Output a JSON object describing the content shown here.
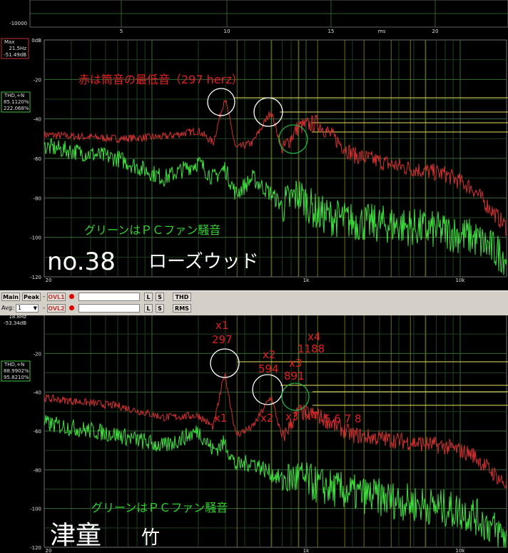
{
  "time_panel": {
    "y_tick": "-10000",
    "x_ticks": [
      "5",
      "10",
      "15",
      "20"
    ],
    "unit": "ms"
  },
  "panel1": {
    "readout": {
      "line1": "Max",
      "line2": "21.5Hz",
      "line3": "-51.49dB"
    },
    "thd": {
      "line1": "THD,+N",
      "line2": "85.1120%",
      "line3": "222.068%"
    },
    "y_ticks": [
      "0dB",
      "-20",
      "-40",
      "-60",
      "-80",
      "-100",
      "-120"
    ],
    "x_ticks": [
      "20",
      "1k",
      "10k"
    ],
    "note_red": "赤は筒音の最低音（297 herz）",
    "note_green": "グリーンはＰＣファン騒音",
    "title_no": "no.38",
    "title_name": "ローズウッド"
  },
  "toolbar": {
    "main": "Main",
    "peak": "Peak",
    "dash1": "-",
    "ovl1": "OVL1",
    "dash2": "-",
    "ovl2": "OVL2",
    "avg_label": "Avg:",
    "avg_value": "1",
    "l": "L",
    "s": "S",
    "thd": "THD",
    "rms": "RMS"
  },
  "panel2": {
    "readout": {
      "line1": "18.8Hz",
      "line2": "-53.34dB"
    },
    "thd": {
      "line1": "THD,+N",
      "line2": "88.9902%",
      "line3": "95.8210%"
    },
    "y_ticks": [
      "-20",
      "-40",
      "-60",
      "-80",
      "-100",
      "-120"
    ],
    "x_ticks": [
      "20",
      "1k",
      "10k"
    ],
    "harmonic_labels": {
      "x1_top": "x1",
      "v1": "297",
      "x2_top": "x2",
      "v2": "594",
      "x3_top": "x3",
      "v3": "891",
      "x4_top": "x4",
      "v4": "1188",
      "x1_low": "x1",
      "x2_low": "x2",
      "x3_low": "x3",
      "x4_low": "x4",
      "rest": "5 6 7 8"
    },
    "note_green": "グリーンはＰＣファン騒音",
    "title_name": "津童",
    "title_material": "竹"
  },
  "chart_data": [
    {
      "type": "line",
      "title": "",
      "xlabel": "",
      "ylabel": "",
      "xscale": "log",
      "xlim": [
        20,
        20000
      ],
      "ylim": [
        -120,
        0
      ],
      "grid": true,
      "series": [
        {
          "color": "#d03030",
          "x": [
            20,
            60,
            120,
            200,
            250,
            297,
            350,
            450,
            594,
            700,
            891,
            1188,
            2000,
            4000,
            8000,
            12000,
            20000
          ],
          "y": [
            -48,
            -50,
            -49,
            -46,
            -52,
            -29,
            -55,
            -52,
            -36,
            -56,
            -44,
            -42,
            -58,
            -64,
            -68,
            -75,
            -95
          ]
        },
        {
          "color": "#40d040",
          "x": [
            20,
            60,
            120,
            200,
            250,
            297,
            350,
            450,
            594,
            700,
            891,
            1188,
            2000,
            4000,
            8000,
            12000,
            20000
          ],
          "y": [
            -54,
            -60,
            -70,
            -62,
            -70,
            -65,
            -78,
            -70,
            -78,
            -84,
            -78,
            -88,
            -92,
            -94,
            -97,
            -100,
            -110
          ]
        }
      ]
    },
    {
      "type": "line",
      "title": "",
      "xlabel": "",
      "ylabel": "",
      "xscale": "log",
      "xlim": [
        20,
        20000
      ],
      "ylim": [
        -120,
        0
      ],
      "grid": true,
      "series": [
        {
          "color": "#d03030",
          "x": [
            20,
            60,
            120,
            200,
            250,
            297,
            350,
            450,
            594,
            700,
            891,
            1188,
            2000,
            4000,
            8000,
            12000,
            20000
          ],
          "y": [
            -43,
            -47,
            -53,
            -52,
            -58,
            -30,
            -62,
            -58,
            -42,
            -64,
            -50,
            -52,
            -62,
            -65,
            -68,
            -72,
            -88
          ]
        },
        {
          "color": "#40d040",
          "x": [
            20,
            60,
            120,
            200,
            250,
            297,
            350,
            450,
            594,
            700,
            891,
            1188,
            2000,
            4000,
            8000,
            12000,
            20000
          ],
          "y": [
            -56,
            -62,
            -68,
            -60,
            -70,
            -66,
            -78,
            -76,
            -82,
            -85,
            -84,
            -88,
            -92,
            -96,
            -100,
            -103,
            -115
          ]
        }
      ]
    }
  ]
}
